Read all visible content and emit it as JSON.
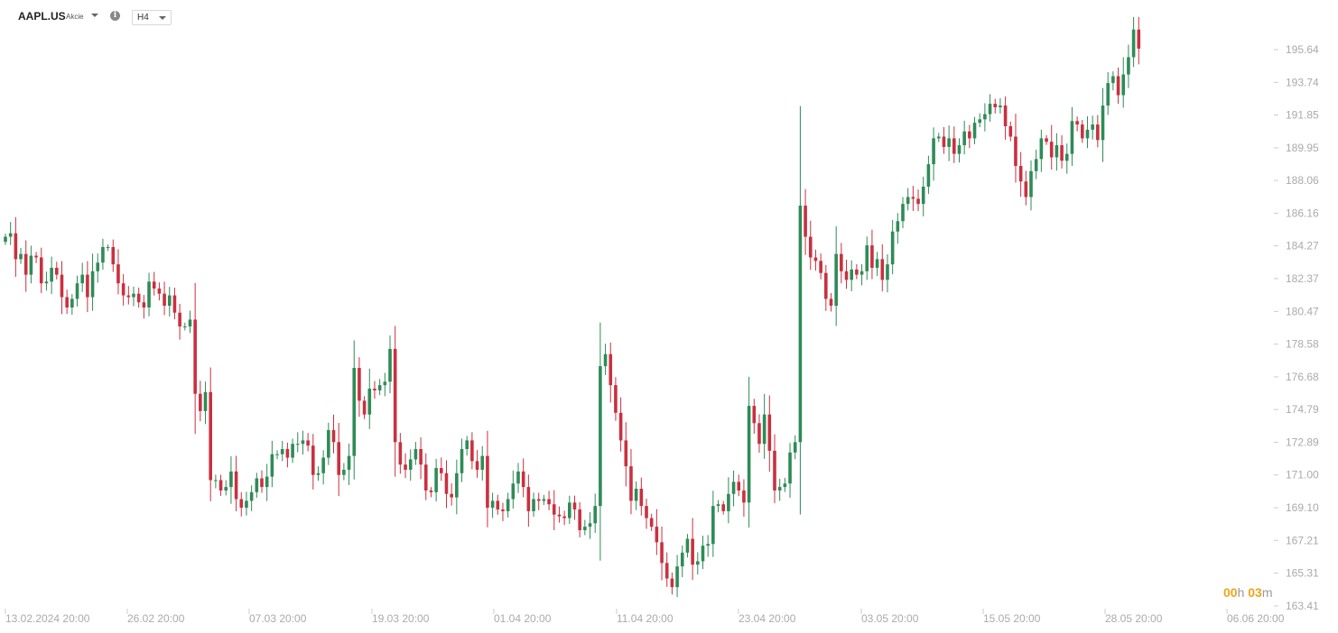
{
  "toolbar": {
    "symbol": "AAPL.US",
    "instrument_type": "Akcie",
    "timeframe": "H4",
    "info_icon": "info-circle-icon",
    "caret_icon": "caret-down-icon"
  },
  "countdown": {
    "hours": "00",
    "hours_unit": "h",
    "minutes": "03",
    "minutes_unit": "m"
  },
  "colors": {
    "up": "#2e8b57",
    "down": "#c9303f",
    "axis_text": "#aaaaaa",
    "countdown": "#f0a31a"
  },
  "chart_data": {
    "type": "candlestick",
    "ylim": [
      163.41,
      197.5
    ],
    "y_ticks": [
      "195.64",
      "193.74",
      "191.85",
      "189.95",
      "188.06",
      "186.16",
      "184.27",
      "182.37",
      "180.47",
      "178.58",
      "176.68",
      "174.79",
      "172.89",
      "171.00",
      "169.10",
      "167.21",
      "165.31",
      "163.41"
    ],
    "x_ticks": [
      "13.02.2024 20:00",
      "26.02 20:00",
      "07.03 20:00",
      "19.03 20:00",
      "01.04 20:00",
      "11.04 20:00",
      "23.04 20:00",
      "03.05 20:00",
      "15.05 20:00",
      "28.05 20:00",
      "06.06 20:00"
    ],
    "closes": [
      184.8,
      185.0,
      183.5,
      183.8,
      182.6,
      183.7,
      183.6,
      182.1,
      182.2,
      183.0,
      182.6,
      181.3,
      180.7,
      181.2,
      182.1,
      182.6,
      181.3,
      182.8,
      183.3,
      184.2,
      184.2,
      183.2,
      182.1,
      181.4,
      181.3,
      181.5,
      181.0,
      180.7,
      182.2,
      181.8,
      181.5,
      180.8,
      181.4,
      180.4,
      179.6,
      179.6,
      180.0,
      175.7,
      174.7,
      175.8,
      170.7,
      170.7,
      170.1,
      170.3,
      171.2,
      169.6,
      169.1,
      169.5,
      170.0,
      170.8,
      170.3,
      170.9,
      172.2,
      172.2,
      172.5,
      172.0,
      172.8,
      172.8,
      173.0,
      172.7,
      171.0,
      171.1,
      172.0,
      173.6,
      172.9,
      171.0,
      171.3,
      172.1,
      177.2,
      175.3,
      174.5,
      176.0,
      175.9,
      176.2,
      176.4,
      178.3,
      172.9,
      171.6,
      171.3,
      171.9,
      172.5,
      171.6,
      170.1,
      170.0,
      171.4,
      171.1,
      169.9,
      169.7,
      171.1,
      172.5,
      173.0,
      171.8,
      171.3,
      172.1,
      169.1,
      169.5,
      169.0,
      168.9,
      169.6,
      170.5,
      171.2,
      170.3,
      168.9,
      169.6,
      169.5,
      169.6,
      169.3,
      168.7,
      168.6,
      168.5,
      169.4,
      169.0,
      167.8,
      168.0,
      168.2,
      169.2,
      177.3,
      178.0,
      176.2,
      174.6,
      173.0,
      171.5,
      169.5,
      170.2,
      169.2,
      168.5,
      168.0,
      167.1,
      165.9,
      165.0,
      164.5,
      165.7,
      166.5,
      167.3,
      165.8,
      166.0,
      166.9,
      167.0,
      169.2,
      169.3,
      168.9,
      169.9,
      170.6,
      170.1,
      169.4,
      175.0,
      174.0,
      172.8,
      174.5,
      172.4,
      170.1,
      170.3,
      170.5,
      172.3,
      172.9,
      186.6,
      184.8,
      183.6,
      183.4,
      182.7,
      181.2,
      180.8,
      183.8,
      182.8,
      182.3,
      182.9,
      182.6,
      182.8,
      184.3,
      183.0,
      183.5,
      182.3,
      183.2,
      185.1,
      185.7,
      186.7,
      187.1,
      187.0,
      186.7,
      187.7,
      189.0,
      190.5,
      190.6,
      190.0,
      190.5,
      189.6,
      190.1,
      190.9,
      190.5,
      191.4,
      191.6,
      191.9,
      192.5,
      192.3,
      192.4,
      191.2,
      190.6,
      188.9,
      188.0,
      187.1,
      188.6,
      189.3,
      190.5,
      190.3,
      189.4,
      190.1,
      189.2,
      189.6,
      191.5,
      191.3,
      190.5,
      191.0,
      191.3,
      190.4,
      192.4,
      193.7,
      194.1,
      193.0,
      194.2,
      195.2,
      196.8,
      195.7
    ]
  }
}
